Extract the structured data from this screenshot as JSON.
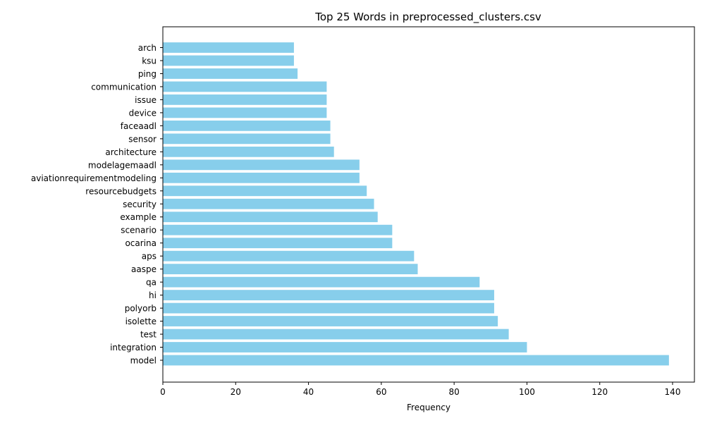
{
  "chart_data": {
    "type": "bar",
    "orientation": "horizontal",
    "title": "Top 25 Words in preprocessed_clusters.csv",
    "xlabel": "Frequency",
    "ylabel": "",
    "xlim": [
      0,
      146
    ],
    "xticks": [
      0,
      20,
      40,
      60,
      80,
      100,
      120,
      140
    ],
    "bar_color": "#87ceeb",
    "grid": false,
    "categories": [
      "model",
      "integration",
      "test",
      "isolette",
      "polyorb",
      "hi",
      "qa",
      "aaspe",
      "aps",
      "ocarina",
      "scenario",
      "example",
      "security",
      "resourcebudgets",
      "aviationrequirementmodeling",
      "modelagemaadl",
      "architecture",
      "sensor",
      "faceaadl",
      "device",
      "issue",
      "communication",
      "ping",
      "ksu",
      "arch"
    ],
    "values": [
      139,
      100,
      95,
      92,
      91,
      91,
      87,
      70,
      69,
      63,
      63,
      59,
      58,
      56,
      54,
      54,
      47,
      46,
      46,
      45,
      45,
      45,
      37,
      36,
      36
    ]
  }
}
